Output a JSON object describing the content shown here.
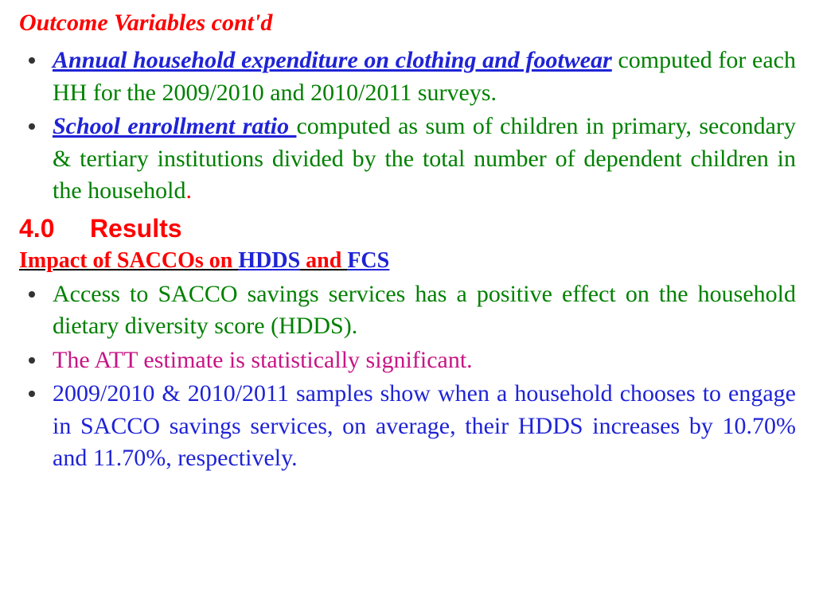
{
  "colors": {
    "red": "#ff0000",
    "blue": "#1f23d6",
    "green": "#008000",
    "magenta": "#c71585",
    "bullet": "#333333"
  },
  "heading": "Outcome  Variables cont'd",
  "bullets_top": [
    {
      "term": "Annual household expenditure on clothing and footwear",
      "term_color": "#1f23d6",
      "rest": " computed for each HH for the 2009/2010 and 2010/2011 surveys.",
      "rest_color": "#008000"
    },
    {
      "term": "School enrollment ratio ",
      "term_color": "#1f23d6",
      "rest": "computed as sum of children in primary, secondary & tertiary institutions divided by the total number of dependent children in the household",
      "rest_color": "#008000",
      "tail": ".",
      "tail_color": "#ff0000"
    }
  ],
  "section": {
    "number": "4.0",
    "title": "Results",
    "color": "#ff0000"
  },
  "subheading": {
    "pre": "Impact of SACCOs on ",
    "pre_color": "#ff0000",
    "hdds": "HDDS",
    "mid": " and ",
    "mid_color": "#ff0000",
    "fcs": "FCS",
    "link_color": "#1f23d6"
  },
  "bullets_bottom": [
    {
      "text": "Access to SACCO savings services has a positive effect on the household dietary diversity score (HDDS).",
      "color": "#008000"
    },
    {
      "text": "The ATT estimate is statistically significant.",
      "color": "#c71585"
    },
    {
      "text": "2009/2010 & 2010/2011 samples show when a household chooses to engage in SACCO savings services, on average, their HDDS increases by 10.70% and 11.70%, respectively.",
      "color": "#1f23d6"
    }
  ]
}
